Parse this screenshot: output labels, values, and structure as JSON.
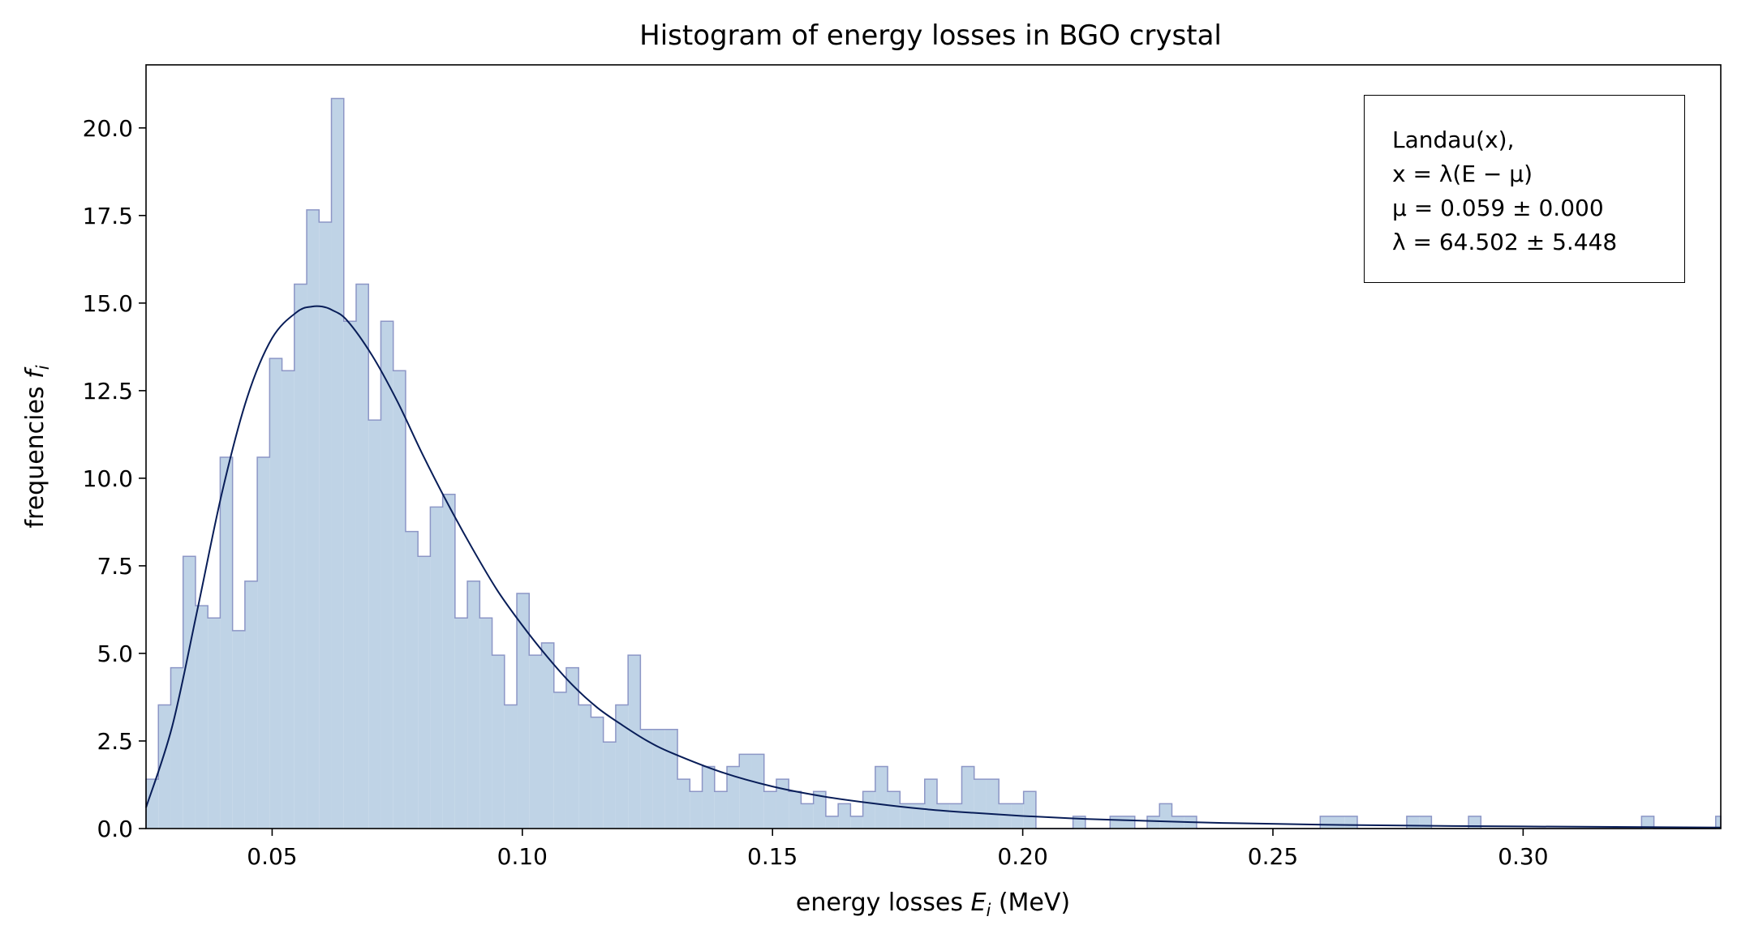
{
  "chart_data": {
    "type": "histogram",
    "title": "Histogram of energy losses in BGO crystal",
    "xlabel": "energy losses E_i (MeV)",
    "xlabel_parts": {
      "pre": "energy losses ",
      "var": "E",
      "sub": "i",
      "post": " (MeV)"
    },
    "ylabel": "frequencies f_i",
    "ylabel_parts": {
      "pre": "frequencies ",
      "var": "f",
      "sub": "i"
    },
    "xlim": [
      0.0248,
      0.3395
    ],
    "ylim": [
      0,
      21.8
    ],
    "xticks": [
      0.05,
      0.1,
      0.15,
      0.2,
      0.25,
      0.3
    ],
    "xtick_labels": [
      "0.05",
      "0.10",
      "0.15",
      "0.20",
      "0.25",
      "0.30"
    ],
    "yticks": [
      0,
      2.5,
      5,
      7.5,
      10,
      12.5,
      15,
      17.5,
      20
    ],
    "ytick_labels": [
      "0.0",
      "2.5",
      "5.0",
      "7.5",
      "10.0",
      "12.5",
      "15.0",
      "17.5",
      "20.0"
    ],
    "grid": false,
    "histogram": {
      "bin_start": 0.0248,
      "bin_width": 0.00247,
      "values": [
        1.41,
        3.53,
        4.59,
        7.77,
        6.36,
        6.01,
        10.6,
        5.65,
        7.06,
        10.6,
        13.42,
        13.07,
        15.54,
        17.66,
        17.31,
        20.84,
        14.48,
        15.54,
        11.66,
        14.48,
        13.07,
        8.48,
        7.77,
        9.18,
        9.54,
        6.01,
        7.06,
        6.01,
        4.95,
        3.53,
        6.71,
        4.95,
        5.3,
        3.89,
        4.59,
        3.53,
        3.18,
        2.47,
        3.53,
        4.95,
        2.83,
        2.83,
        2.83,
        1.41,
        1.06,
        1.77,
        1.06,
        1.77,
        2.12,
        2.12,
        1.06,
        1.41,
        1.06,
        0.71,
        1.06,
        0.35,
        0.71,
        0.35,
        1.06,
        1.77,
        1.06,
        0.71,
        0.71,
        1.41,
        0.71,
        0.71,
        1.77,
        1.41,
        1.41,
        0.71,
        0.71,
        1.06,
        0,
        0,
        0,
        0.35,
        0,
        0,
        0.35,
        0.35,
        0,
        0.35,
        0.71,
        0.35,
        0.35,
        0,
        0,
        0,
        0,
        0,
        0,
        0,
        0,
        0,
        0,
        0.35,
        0.35,
        0.35,
        0,
        0,
        0,
        0,
        0.35,
        0.35,
        0,
        0,
        0,
        0.35,
        0,
        0,
        0,
        0,
        0,
        0,
        0,
        0,
        0,
        0,
        0,
        0,
        0,
        0.35,
        0,
        0,
        0,
        0,
        0,
        0.35,
        0,
        0.35
      ],
      "fill_color": "#bfd3e6",
      "edge_color": "#8c96c6"
    },
    "series": [
      {
        "type": "line",
        "color": "#081d58",
        "x": [
          0.0248,
          0.03,
          0.035,
          0.04,
          0.045,
          0.05,
          0.055,
          0.058,
          0.06,
          0.062,
          0.065,
          0.07,
          0.075,
          0.08,
          0.085,
          0.09,
          0.095,
          0.1,
          0.105,
          0.11,
          0.115,
          0.12,
          0.125,
          0.13,
          0.14,
          0.15,
          0.16,
          0.17,
          0.18,
          0.19,
          0.2,
          0.21,
          0.22,
          0.24,
          0.26,
          0.28,
          0.3,
          0.3395
        ],
        "y": [
          0.6,
          2.9,
          6.2,
          9.6,
          12.3,
          14.0,
          14.75,
          14.9,
          14.9,
          14.8,
          14.5,
          13.5,
          12.2,
          10.7,
          9.3,
          8.0,
          6.8,
          5.8,
          4.9,
          4.1,
          3.45,
          2.95,
          2.5,
          2.15,
          1.6,
          1.2,
          0.92,
          0.72,
          0.56,
          0.45,
          0.36,
          0.29,
          0.24,
          0.16,
          0.11,
          0.08,
          0.06,
          0.03
        ]
      }
    ],
    "legend": {
      "placement": "top-right",
      "lines": [
        "Landau(x),",
        "x = λ(E − μ)",
        "μ = 0.059 ± 0.000",
        "λ = 64.502 ± 5.448"
      ]
    }
  }
}
